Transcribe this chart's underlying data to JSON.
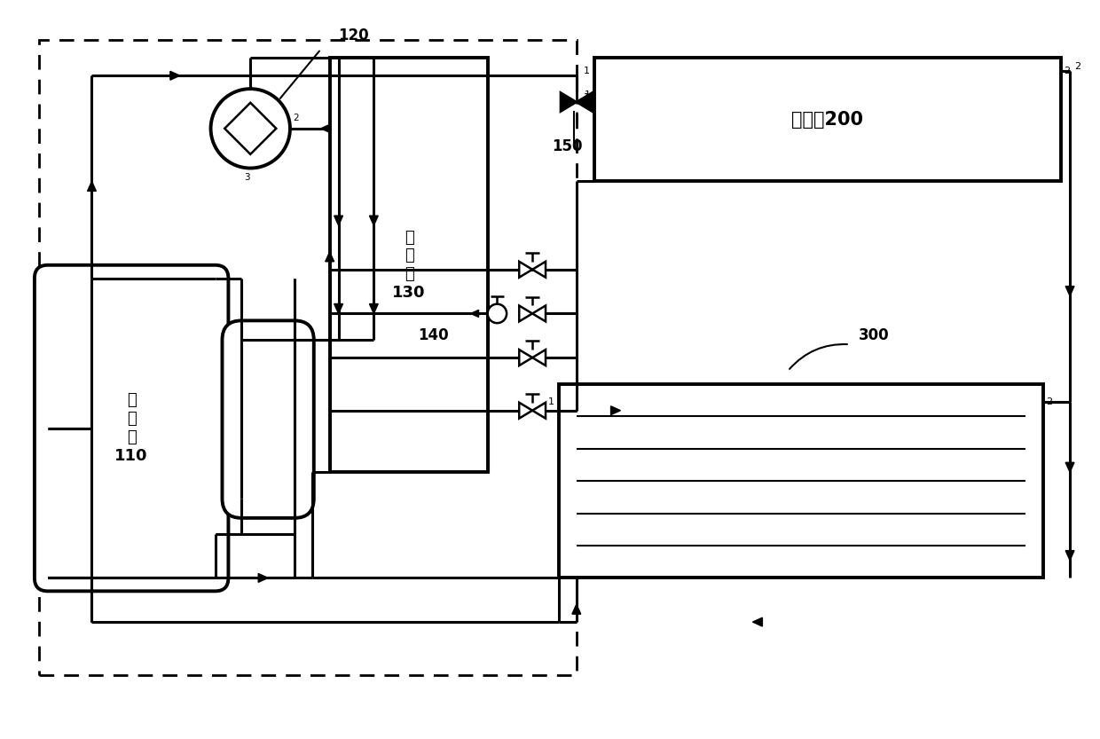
{
  "bg": "#ffffff",
  "lc": "#000000",
  "fig_w": 12.4,
  "fig_h": 8.33,
  "dpi": 100,
  "xlim": [
    0,
    124
  ],
  "ylim": [
    0,
    83.3
  ],
  "compressor_label": "压\n缩\n机\n110",
  "condenser_label": "冷\n凝\n器\n130",
  "indoor_label": "室内机200",
  "label_120": "120",
  "label_140": "140",
  "label_150": "150",
  "label_300": "300"
}
